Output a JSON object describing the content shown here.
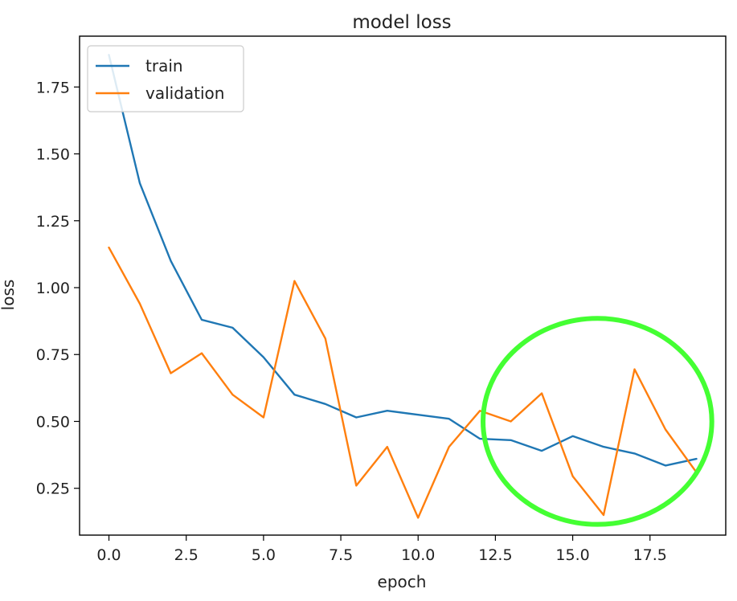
{
  "chart_data": {
    "type": "line",
    "title": "model loss",
    "xlabel": "epoch",
    "ylabel": "loss",
    "xlim": [
      -0.95,
      19.95
    ],
    "ylim": [
      0.075,
      1.94
    ],
    "xticks": [
      0.0,
      2.5,
      5.0,
      7.5,
      10.0,
      12.5,
      15.0,
      17.5
    ],
    "xtick_labels": [
      "0.0",
      "2.5",
      "5.0",
      "7.5",
      "10.0",
      "12.5",
      "15.0",
      "17.5"
    ],
    "yticks": [
      0.25,
      0.5,
      0.75,
      1.0,
      1.25,
      1.5,
      1.75
    ],
    "ytick_labels": [
      "0.25",
      "0.50",
      "0.75",
      "1.00",
      "1.25",
      "1.50",
      "1.75"
    ],
    "grid": false,
    "legend_position": "top-left",
    "x": [
      0,
      1,
      2,
      3,
      4,
      5,
      6,
      7,
      8,
      9,
      10,
      11,
      12,
      13,
      14,
      15,
      16,
      17,
      18,
      19
    ],
    "series": [
      {
        "name": "train",
        "color": "#1f77b4",
        "values": [
          1.87,
          1.39,
          1.1,
          0.88,
          0.85,
          0.74,
          0.6,
          0.565,
          0.515,
          0.54,
          0.525,
          0.51,
          0.435,
          0.43,
          0.39,
          0.445,
          0.405,
          0.38,
          0.335,
          0.36
        ]
      },
      {
        "name": "validation",
        "color": "#ff7f0e",
        "values": [
          1.15,
          0.94,
          0.68,
          0.755,
          0.6,
          0.515,
          1.025,
          0.81,
          0.26,
          0.405,
          0.14,
          0.405,
          0.54,
          0.5,
          0.605,
          0.295,
          0.15,
          0.695,
          0.47,
          0.31
        ]
      }
    ],
    "annotations": [
      {
        "type": "ellipse",
        "color": "#44ff33",
        "cx": 15.8,
        "cy": 0.5,
        "rx": 3.7,
        "ry": 0.385
      }
    ]
  }
}
